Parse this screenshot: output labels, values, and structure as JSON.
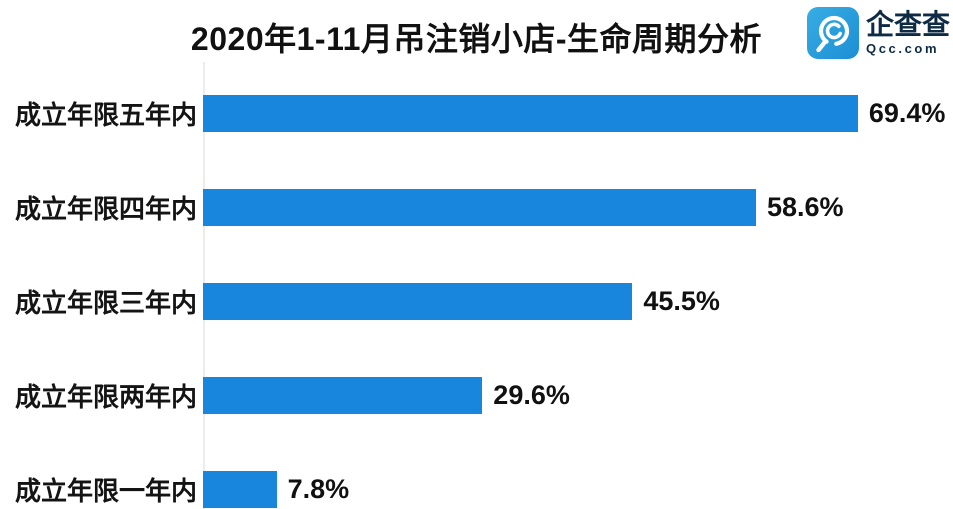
{
  "title": "2020年1-11月吊注销小店-生命周期分析",
  "logo": {
    "brand": "企查查",
    "domain": "Qcc.com",
    "icon": "qcc-magnifier-c-icon",
    "icon_color": "#2aa2de",
    "text_color": "#0e2b45"
  },
  "colors": {
    "bar": "#1986de",
    "axis": "#ececec",
    "text": "#111111"
  },
  "chart_data": {
    "type": "bar",
    "orientation": "horizontal",
    "title": "2020年1-11月吊注销小店-生命周期分析",
    "categories": [
      "成立年限五年内",
      "成立年限四年内",
      "成立年限三年内",
      "成立年限两年内",
      "成立年限一年内"
    ],
    "values": [
      69.4,
      58.6,
      45.5,
      29.6,
      7.8
    ],
    "value_labels": [
      "69.4%",
      "58.6%",
      "45.5%",
      "29.6%",
      "7.8%"
    ],
    "unit": "%",
    "xlim": [
      0,
      78
    ],
    "grid": false,
    "legend": false,
    "value_label_position": "right-of-bar"
  }
}
